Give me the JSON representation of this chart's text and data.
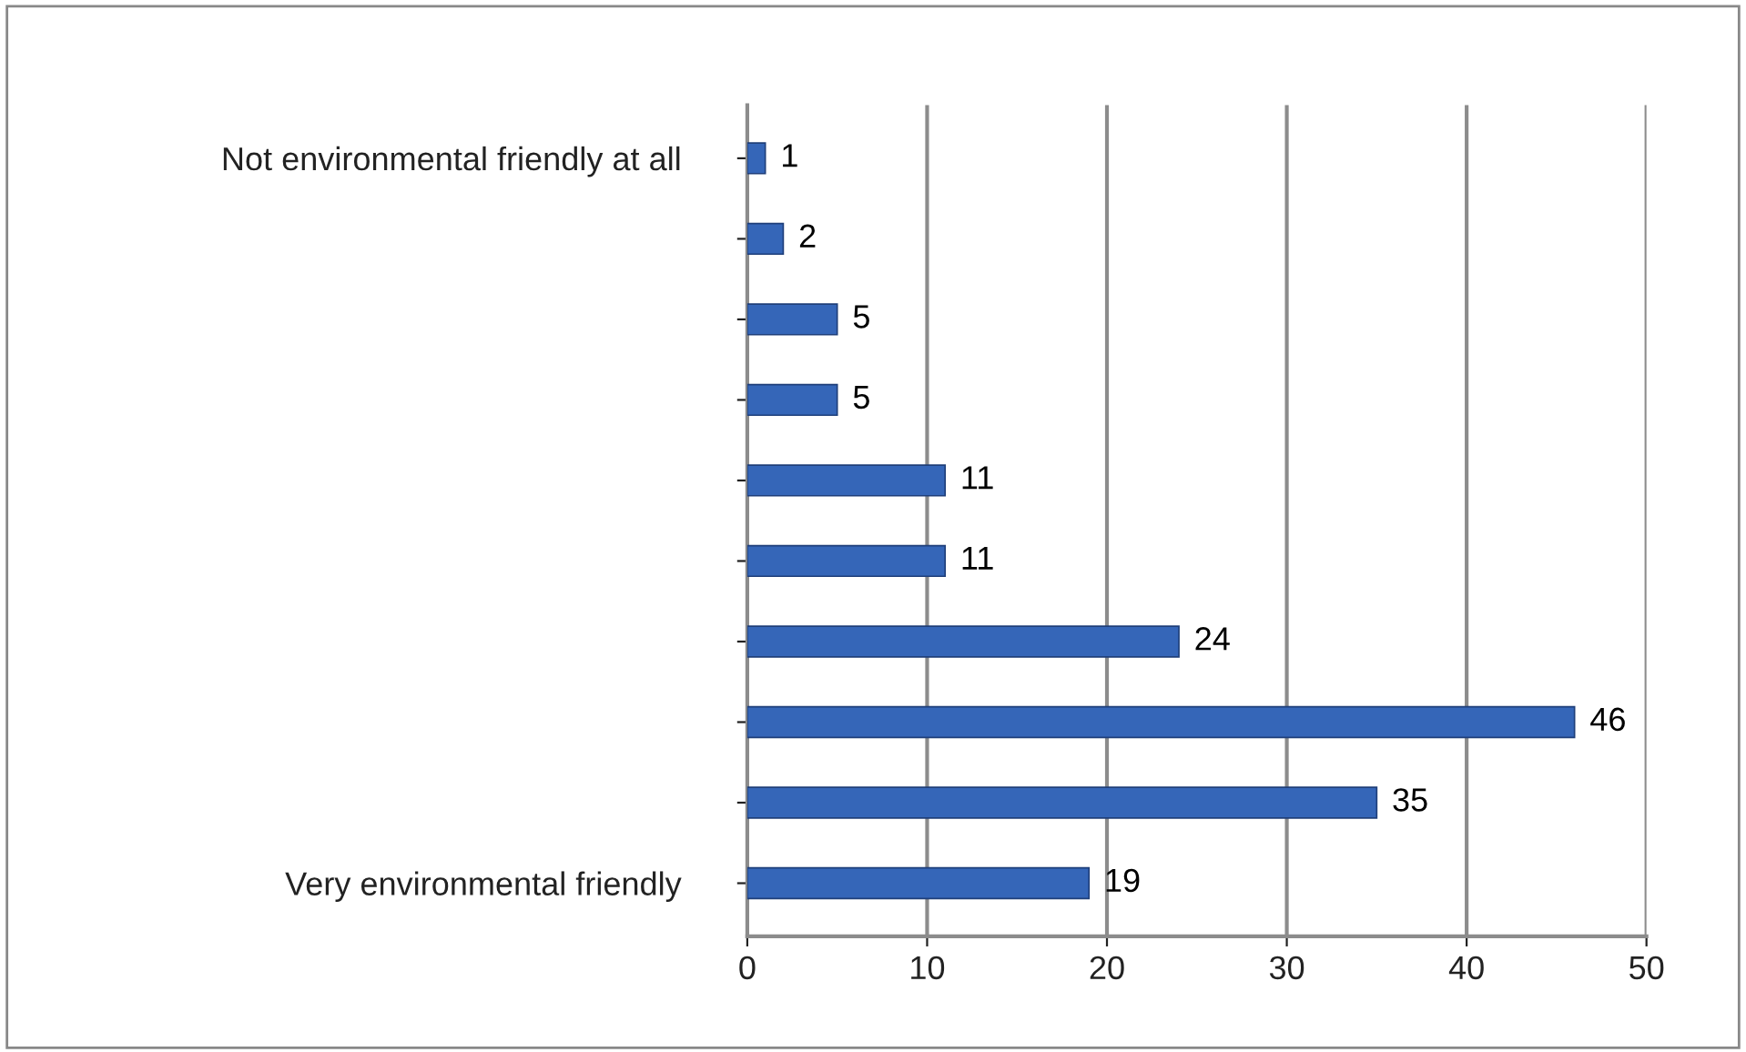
{
  "chart_data": {
    "type": "bar",
    "orientation": "horizontal",
    "categories": [
      "Not environmental friendly at all",
      null,
      null,
      null,
      null,
      null,
      null,
      null,
      null,
      "Very environmental friendly"
    ],
    "values": [
      1,
      2,
      5,
      5,
      11,
      11,
      24,
      46,
      35,
      19
    ],
    "color": "#3566b8",
    "xlim": [
      0,
      50
    ],
    "xticks": [
      0,
      10,
      20,
      30,
      40,
      50
    ],
    "grid": "x",
    "data_labels": true,
    "legend": false
  }
}
